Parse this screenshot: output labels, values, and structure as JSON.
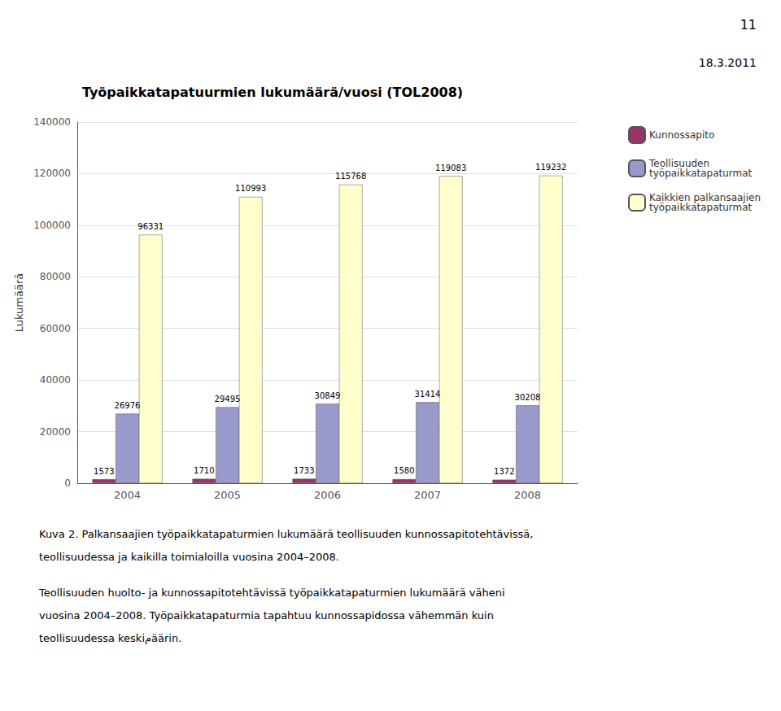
{
  "chart_data": {
    "type": "bar",
    "title": "Työpaikkatapatuurmien lukumäärä/vuosi (TOL2008)",
    "ylabel": "Lukumäärä",
    "categories": [
      "2004",
      "2005",
      "2006",
      "2007",
      "2008"
    ],
    "series": [
      {
        "name": "Kunnossapito",
        "color": "#993366",
        "values": [
          1573,
          1710,
          1733,
          1580,
          1372
        ]
      },
      {
        "name": "Teollisuuden\ntyöpaikkatapaturmat",
        "color": "#9999CC",
        "values": [
          26976,
          29495,
          30849,
          31414,
          30208
        ]
      },
      {
        "name": "Kaikkien palkansaajien\ntyöpaikkatapaturmat",
        "color": "#FFFFCC",
        "values": [
          96331,
          110993,
          115768,
          119083,
          119232
        ]
      }
    ],
    "ylim": [
      0,
      140000
    ],
    "yticks": [
      0,
      20000,
      40000,
      60000,
      80000,
      100000,
      120000,
      140000
    ],
    "grid": true,
    "data_labels": true,
    "legend": "right",
    "annotations": [
      "11",
      "18.3.2011",
      "Kuva 2. Palkansaajien työpaikkatapaturmien lukumäärä teollisuuden kunnossapitotehtävissä,",
      "teollisuudessa ja kaikilla toimialoilla vuosina 2004–2008.",
      "Teollisuuden huolto- ja kunnossapitotehtävissä työpaikkatapaturmien lukumäärä väheni",
      "vuosina 2004–2008. Työpaikkatapaturmia tapahtuu kunnossapidossa vähemmän kuin",
      "teollisuudessa keskiمäärin."
    ]
  }
}
